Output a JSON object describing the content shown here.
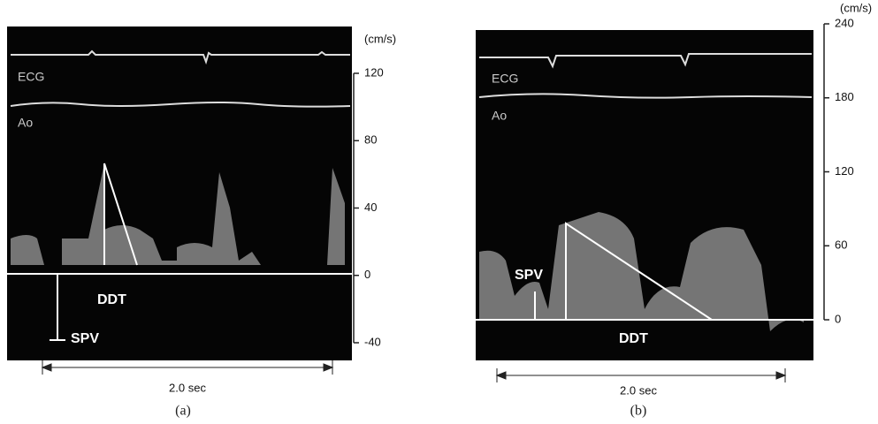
{
  "panels": [
    {
      "caption": "(a)",
      "unit": "(cm/s)",
      "ticks": [
        120,
        80,
        40,
        0,
        -40
      ],
      "traces": [
        "ECG",
        "Ao"
      ],
      "annotations": [
        "DDT",
        "SPV"
      ],
      "scale": "2.0 sec"
    },
    {
      "caption": "(b)",
      "unit": "(cm/s)",
      "ticks": [
        240,
        180,
        120,
        60,
        0
      ],
      "traces": [
        "ECG",
        "Ao"
      ],
      "annotations": [
        "SPV",
        "DDT"
      ],
      "scale": "2.0 sec"
    }
  ]
}
